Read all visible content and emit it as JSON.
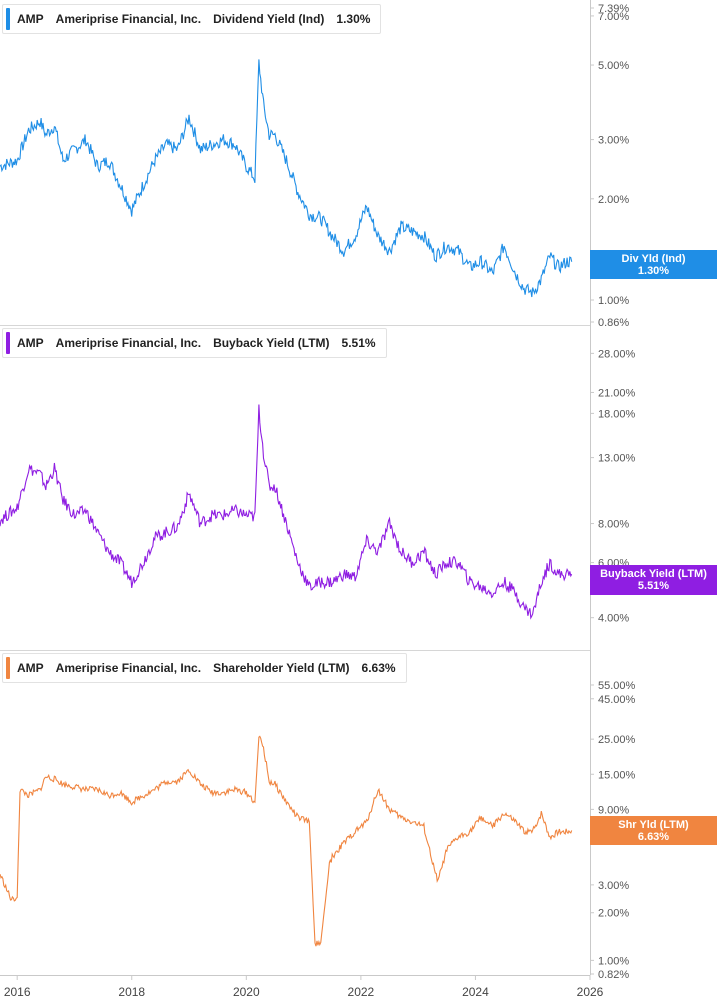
{
  "chart_data": [
    {
      "type": "line",
      "ticker": "AMP",
      "company": "Ameriprise Financial, Inc.",
      "metric": "Dividend Yield (Ind)",
      "current": "1.30%",
      "flag_label": "Div Yld (Ind)",
      "color": "#1f8ee6",
      "y_scale": "log",
      "ylim": [
        0.86,
        7.39
      ],
      "yticks": [
        {
          "v": 7.39,
          "label": "7.39%"
        },
        {
          "v": 7.0,
          "label": "7.00%"
        },
        {
          "v": 5.0,
          "label": "5.00%"
        },
        {
          "v": 3.0,
          "label": "3.00%"
        },
        {
          "v": 2.0,
          "label": "2.00%"
        },
        {
          "v": 1.0,
          "label": "1.00%"
        },
        {
          "v": 0.86,
          "label": "0.86%"
        }
      ],
      "x": [
        2015.7,
        2016.0,
        2016.2,
        2016.4,
        2016.5,
        2016.65,
        2016.8,
        2017.0,
        2017.2,
        2017.4,
        2017.6,
        2017.8,
        2018.0,
        2018.2,
        2018.4,
        2018.6,
        2018.8,
        2019.0,
        2019.2,
        2019.4,
        2019.6,
        2019.8,
        2020.0,
        2020.15,
        2020.22,
        2020.3,
        2020.4,
        2020.5,
        2020.7,
        2020.9,
        2021.1,
        2021.3,
        2021.5,
        2021.7,
        2021.9,
        2022.1,
        2022.3,
        2022.5,
        2022.7,
        2022.9,
        2023.1,
        2023.3,
        2023.5,
        2023.7,
        2023.9,
        2024.1,
        2024.3,
        2024.5,
        2024.7,
        2024.85,
        2025.0,
        2025.15,
        2025.3,
        2025.45,
        2025.6,
        2025.68
      ],
      "values": [
        2.5,
        2.6,
        3.2,
        3.4,
        3.1,
        3.3,
        2.6,
        2.8,
        3.0,
        2.5,
        2.6,
        2.2,
        1.85,
        2.2,
        2.6,
        2.9,
        2.8,
        3.5,
        2.8,
        2.9,
        3.0,
        2.9,
        2.5,
        2.3,
        5.1,
        3.8,
        3.1,
        3.1,
        2.6,
        2.1,
        1.8,
        1.75,
        1.55,
        1.4,
        1.55,
        1.9,
        1.55,
        1.4,
        1.65,
        1.6,
        1.55,
        1.35,
        1.45,
        1.4,
        1.25,
        1.3,
        1.2,
        1.45,
        1.2,
        1.08,
        1.05,
        1.15,
        1.35,
        1.25,
        1.3,
        1.3
      ],
      "xlim": [
        2015.7,
        2026.0
      ]
    },
    {
      "type": "line",
      "ticker": "AMP",
      "company": "Ameriprise Financial, Inc.",
      "metric": "Buyback Yield (LTM)",
      "current": "5.51%",
      "flag_label": "Buyback Yield (LTM)",
      "color": "#8f1ee2",
      "y_scale": "log",
      "ylim": [
        3.6,
        30.0
      ],
      "yticks": [
        {
          "v": 28.0,
          "label": "28.00%"
        },
        {
          "v": 21.0,
          "label": "21.00%"
        },
        {
          "v": 18.0,
          "label": "18.00%"
        },
        {
          "v": 13.0,
          "label": "13.00%"
        },
        {
          "v": 8.0,
          "label": "8.00%"
        },
        {
          "v": 6.0,
          "label": "6.00%"
        },
        {
          "v": 4.0,
          "label": "4.00%"
        }
      ],
      "x": [
        2015.7,
        2016.0,
        2016.2,
        2016.4,
        2016.5,
        2016.65,
        2016.8,
        2017.0,
        2017.2,
        2017.4,
        2017.6,
        2017.8,
        2018.0,
        2018.2,
        2018.4,
        2018.6,
        2018.8,
        2019.0,
        2019.2,
        2019.4,
        2019.6,
        2019.8,
        2020.0,
        2020.15,
        2020.22,
        2020.3,
        2020.4,
        2020.5,
        2020.7,
        2020.9,
        2021.1,
        2021.3,
        2021.5,
        2021.7,
        2021.9,
        2022.1,
        2022.3,
        2022.5,
        2022.7,
        2022.9,
        2023.1,
        2023.3,
        2023.5,
        2023.7,
        2023.9,
        2024.1,
        2024.3,
        2024.5,
        2024.7,
        2024.85,
        2025.0,
        2025.15,
        2025.3,
        2025.45,
        2025.6,
        2025.68
      ],
      "values": [
        8.2,
        9.0,
        12.0,
        11.5,
        10.5,
        12.0,
        9.5,
        8.5,
        8.8,
        7.5,
        6.5,
        6.0,
        5.2,
        6.0,
        7.2,
        7.5,
        7.8,
        10.0,
        8.0,
        8.5,
        8.5,
        8.8,
        8.5,
        8.4,
        18.5,
        13.5,
        10.5,
        10.5,
        8.0,
        6.0,
        5.0,
        5.2,
        5.2,
        5.5,
        5.4,
        7.0,
        6.5,
        8.0,
        6.5,
        6.0,
        6.5,
        5.5,
        6.0,
        6.0,
        5.2,
        5.0,
        4.8,
        5.2,
        4.8,
        4.3,
        4.1,
        5.2,
        6.0,
        5.5,
        5.5,
        5.51
      ],
      "xlim": [
        2015.7,
        2026.0
      ]
    },
    {
      "type": "line",
      "ticker": "AMP",
      "company": "Ameriprise Financial, Inc.",
      "metric": "Shareholder Yield (LTM)",
      "current": "6.63%",
      "flag_label": "Shr Yld (LTM)",
      "color": "#f08540",
      "y_scale": "log",
      "ylim": [
        0.82,
        60.0
      ],
      "yticks": [
        {
          "v": 55.0,
          "label": "55.00%"
        },
        {
          "v": 45.0,
          "label": "45.00%"
        },
        {
          "v": 25.0,
          "label": "25.00%"
        },
        {
          "v": 15.0,
          "label": "15.00%"
        },
        {
          "v": 9.0,
          "label": "9.00%"
        },
        {
          "v": 6.0,
          "label": "6.00%"
        },
        {
          "v": 3.0,
          "label": "3.00%"
        },
        {
          "v": 2.0,
          "label": "2.00%"
        },
        {
          "v": 1.0,
          "label": "1.00%"
        },
        {
          "v": 0.82,
          "label": "0.82%"
        }
      ],
      "x": [
        2015.7,
        2015.9,
        2016.0,
        2016.05,
        2016.2,
        2016.4,
        2016.5,
        2016.65,
        2016.8,
        2017.0,
        2017.2,
        2017.4,
        2017.6,
        2017.8,
        2018.0,
        2018.2,
        2018.4,
        2018.6,
        2018.8,
        2019.0,
        2019.2,
        2019.4,
        2019.6,
        2019.8,
        2020.0,
        2020.15,
        2020.22,
        2020.3,
        2020.4,
        2020.5,
        2020.7,
        2020.9,
        2021.1,
        2021.2,
        2021.25,
        2021.3,
        2021.45,
        2021.5,
        2021.7,
        2021.9,
        2022.1,
        2022.3,
        2022.5,
        2022.7,
        2022.9,
        2023.1,
        2023.3,
        2023.35,
        2023.5,
        2023.6,
        2023.7,
        2023.9,
        2024.1,
        2024.3,
        2024.5,
        2024.7,
        2024.85,
        2025.0,
        2025.15,
        2025.3,
        2025.45,
        2025.6,
        2025.68
      ],
      "values": [
        3.5,
        2.4,
        2.5,
        12.0,
        11.0,
        12.0,
        14.5,
        14.0,
        13.0,
        12.5,
        12.0,
        12.0,
        11.0,
        11.5,
        10.0,
        11.0,
        12.0,
        13.5,
        13.5,
        16.0,
        13.0,
        11.5,
        11.5,
        12.0,
        11.5,
        10.0,
        26.0,
        22.0,
        13.5,
        13.0,
        10.0,
        8.0,
        7.5,
        1.25,
        1.3,
        1.3,
        4.0,
        4.5,
        5.5,
        6.5,
        7.5,
        12.0,
        9.0,
        8.0,
        7.5,
        7.0,
        3.5,
        3.2,
        5.0,
        5.5,
        6.0,
        6.5,
        8.0,
        7.0,
        8.5,
        7.5,
        6.5,
        6.5,
        8.5,
        6.0,
        6.5,
        6.5,
        6.63
      ],
      "xlim": [
        2015.7,
        2026.0
      ]
    }
  ],
  "x_axis": {
    "ticks": [
      {
        "v": 2016,
        "label": "2016"
      },
      {
        "v": 2018,
        "label": "2018"
      },
      {
        "v": 2020,
        "label": "2020"
      },
      {
        "v": 2022,
        "label": "2022"
      },
      {
        "v": 2024,
        "label": "2024"
      },
      {
        "v": 2026,
        "label": "2026"
      }
    ]
  }
}
